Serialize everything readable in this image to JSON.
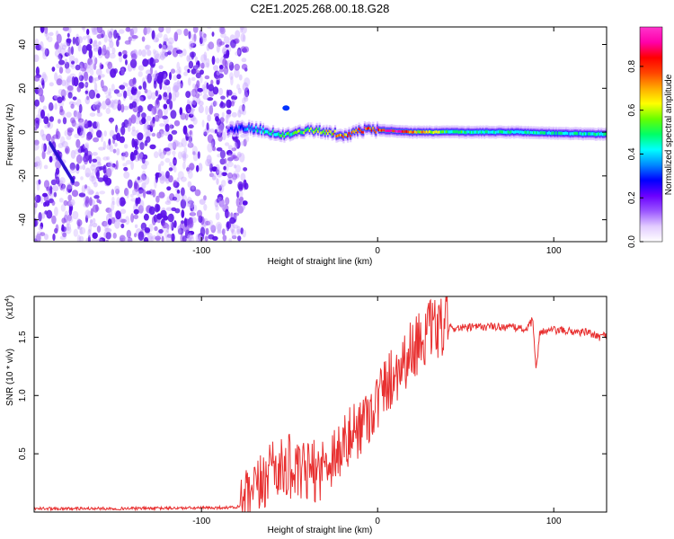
{
  "chart_data": [
    {
      "type": "heatmap",
      "title": "C2E1.2025.268.00.18.G28",
      "xlabel": "Height of straight line (km)",
      "ylabel": "Frequency (Hz)",
      "xlim": [
        -195,
        130
      ],
      "ylim": [
        -50,
        48
      ],
      "xticks": [
        -100,
        0,
        100
      ],
      "yticks": [
        -40,
        -20,
        0,
        20,
        40
      ],
      "colorbar": {
        "label": "Normalized spectral amplitude",
        "range": [
          0,
          0.98
        ],
        "ticks": [
          "0.0",
          "0.2",
          "0.4",
          "0.6",
          "0.8"
        ],
        "colors": [
          "#ffffff",
          "#e2ccff",
          "#9a55ff",
          "#6a00ff",
          "#0000ff",
          "#0088ff",
          "#00ffff",
          "#00ff66",
          "#66ff00",
          "#ffff00",
          "#ffaa00",
          "#ff4400",
          "#ff0000",
          "#ff00aa",
          "#ff33cc"
        ]
      },
      "ridge": {
        "x": [
          -85,
          -75,
          -65,
          -55,
          -45,
          -35,
          -25,
          -18,
          -10,
          0,
          10,
          20,
          40,
          60,
          80,
          100,
          130
        ],
        "freq": [
          0.5,
          2,
          1,
          -2,
          0.5,
          1,
          -0.5,
          -2,
          1,
          1,
          0.5,
          0,
          0,
          0,
          0,
          -0.5,
          -1
        ],
        "amplitude": [
          0.25,
          0.35,
          0.45,
          0.5,
          0.55,
          0.6,
          0.7,
          0.75,
          0.8,
          0.85,
          0.9,
          0.75,
          0.5,
          0.45,
          0.45,
          0.45,
          0.45
        ]
      },
      "noise_region_x": [
        -195,
        -80
      ]
    },
    {
      "type": "line",
      "xlabel": "Height of straight line (km)",
      "ylabel": "SNR (10 * v/v)",
      "yscale_label": "(x10",
      "yscale_exp": "4",
      "xlim": [
        -195,
        130
      ],
      "ylim": [
        0,
        18500
      ],
      "xticks": [
        -100,
        0,
        100
      ],
      "yticks": [
        5000,
        10000,
        15000
      ],
      "ytick_labels": [
        "0.5",
        "1.0",
        "1.5"
      ],
      "series": [
        {
          "name": "SNR",
          "color": "#e83030",
          "x": [
            -195,
            -150,
            -100,
            -80,
            -75,
            -70,
            -65,
            -60,
            -55,
            -50,
            -45,
            -40,
            -35,
            -30,
            -25,
            -20,
            -15,
            -10,
            -5,
            0,
            5,
            10,
            15,
            20,
            25,
            30,
            35,
            40,
            50,
            60,
            70,
            80,
            85,
            88,
            90,
            92,
            95,
            100,
            110,
            120,
            125,
            130
          ],
          "values": [
            300,
            300,
            350,
            400,
            800,
            1500,
            2500,
            4500,
            3500,
            4000,
            3000,
            3500,
            3500,
            4000,
            5000,
            5500,
            6500,
            7500,
            8500,
            9500,
            11000,
            12000,
            13000,
            14000,
            15000,
            15500,
            15700,
            15800,
            15800,
            15900,
            15900,
            15800,
            15700,
            16500,
            12000,
            15500,
            15500,
            15600,
            15500,
            15400,
            15000,
            15200
          ]
        }
      ]
    }
  ]
}
